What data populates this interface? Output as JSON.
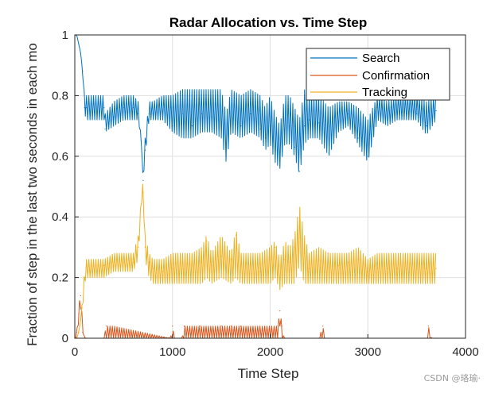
{
  "chart_data": {
    "type": "line",
    "title": "Radar Allocation vs. Time Step",
    "xlabel": "Time Step",
    "ylabel": "Fraction of step in the last two seconds in each mo",
    "xlim": [
      0,
      4000
    ],
    "ylim": [
      0,
      1
    ],
    "xticks": [
      0,
      1000,
      2000,
      3000,
      4000
    ],
    "yticks": [
      0,
      0.2,
      0.4,
      0.6,
      0.8,
      1
    ],
    "xtick_labels": [
      "0",
      "1000",
      "2000",
      "3000",
      "4000"
    ],
    "ytick_labels": [
      "0",
      "0.2",
      "0.4",
      "0.6",
      "0.8",
      "1"
    ],
    "grid": true,
    "legend_position": "top-right",
    "series": [
      {
        "name": "Search",
        "color": "#0072BD",
        "x": [
          0,
          20,
          40,
          60,
          80,
          100,
          120,
          300,
          310,
          400,
          500,
          600,
          650,
          680,
          700,
          720,
          760,
          800,
          900,
          1000,
          1100,
          1200,
          1300,
          1400,
          1500,
          1550,
          1600,
          1700,
          1800,
          1900,
          1950,
          2000,
          2050,
          2100,
          2150,
          2200,
          2250,
          2300,
          2350,
          2400,
          2500,
          2600,
          2700,
          2800,
          2900,
          3000,
          3100,
          3200,
          3300,
          3400,
          3500,
          3600,
          3700
        ],
        "values": [
          1.0,
          1.0,
          0.97,
          0.94,
          0.88,
          0.76,
          0.76,
          0.76,
          0.69,
          0.73,
          0.76,
          0.76,
          0.74,
          0.65,
          0.52,
          0.62,
          0.74,
          0.74,
          0.75,
          0.7,
          0.74,
          0.7,
          0.74,
          0.73,
          0.71,
          0.6,
          0.73,
          0.7,
          0.74,
          0.69,
          0.66,
          0.7,
          0.62,
          0.57,
          0.69,
          0.7,
          0.63,
          0.55,
          0.7,
          0.72,
          0.71,
          0.61,
          0.7,
          0.74,
          0.66,
          0.6,
          0.76,
          0.72,
          0.74,
          0.74,
          0.74,
          0.7,
          0.75
        ],
        "band_low": [
          1.0,
          1.0,
          0.97,
          0.94,
          0.88,
          0.74,
          0.72,
          0.72,
          0.68,
          0.7,
          0.72,
          0.72,
          0.72,
          0.65,
          0.52,
          0.6,
          0.72,
          0.72,
          0.72,
          0.68,
          0.66,
          0.66,
          0.68,
          0.68,
          0.66,
          0.58,
          0.68,
          0.66,
          0.68,
          0.66,
          0.62,
          0.64,
          0.58,
          0.56,
          0.64,
          0.64,
          0.6,
          0.54,
          0.64,
          0.66,
          0.66,
          0.6,
          0.68,
          0.7,
          0.64,
          0.58,
          0.72,
          0.7,
          0.72,
          0.72,
          0.72,
          0.67,
          0.72
        ],
        "band_high": [
          1.0,
          1.0,
          0.97,
          0.94,
          0.88,
          0.8,
          0.8,
          0.8,
          0.74,
          0.78,
          0.8,
          0.8,
          0.78,
          0.65,
          0.52,
          0.66,
          0.78,
          0.78,
          0.8,
          0.8,
          0.82,
          0.82,
          0.82,
          0.82,
          0.82,
          0.74,
          0.82,
          0.8,
          0.82,
          0.8,
          0.76,
          0.8,
          0.74,
          0.7,
          0.8,
          0.8,
          0.76,
          0.72,
          0.82,
          0.8,
          0.8,
          0.76,
          0.78,
          0.78,
          0.76,
          0.72,
          0.8,
          0.78,
          0.8,
          0.8,
          0.8,
          0.78,
          0.8
        ]
      },
      {
        "name": "Confirmation",
        "color": "#D95319",
        "x": [
          0,
          10,
          20,
          40,
          60,
          80,
          100,
          120,
          300,
          320,
          400,
          980,
          1000,
          1020,
          1100,
          1120,
          1200,
          1280,
          1500,
          1600,
          1700,
          2080,
          2100,
          2120,
          2140,
          2500,
          2540,
          2560,
          3600,
          3620,
          3650,
          3700
        ],
        "values": [
          0,
          0,
          0.02,
          0.08,
          0.14,
          0.02,
          0,
          0,
          0,
          0.04,
          0,
          0,
          0.04,
          0,
          0,
          0.04,
          0,
          0.04,
          0.04,
          0.04,
          0.04,
          0.04,
          0.09,
          0.04,
          0,
          0,
          0.04,
          0,
          0,
          0.04,
          0,
          0
        ],
        "band_low": [
          0,
          0,
          0.02,
          0.05,
          0.1,
          0.02,
          0,
          0,
          0,
          0,
          0,
          0,
          0,
          0,
          0,
          0,
          0,
          0,
          0,
          0,
          0,
          0,
          0.04,
          0,
          0,
          0,
          0,
          0,
          0,
          0,
          0,
          0
        ],
        "band_high": [
          0,
          0,
          0.02,
          0.1,
          0.16,
          0.04,
          0,
          0,
          0,
          0.04,
          0.04,
          0,
          0.04,
          0,
          0,
          0.04,
          0.04,
          0.04,
          0.04,
          0.04,
          0.04,
          0.04,
          0.1,
          0.04,
          0,
          0,
          0.04,
          0,
          0,
          0.04,
          0,
          0
        ]
      },
      {
        "name": "Tracking",
        "color": "#EDB120",
        "x": [
          0,
          20,
          40,
          60,
          80,
          100,
          120,
          300,
          400,
          500,
          600,
          650,
          680,
          700,
          720,
          760,
          800,
          900,
          1000,
          1100,
          1200,
          1300,
          1350,
          1400,
          1500,
          1600,
          1650,
          1700,
          1800,
          1900,
          2000,
          2050,
          2100,
          2150,
          2200,
          2250,
          2300,
          2350,
          2400,
          2500,
          2600,
          2700,
          2800,
          2900,
          3000,
          3100,
          3200,
          3300,
          3400,
          3500,
          3600,
          3700
        ],
        "values": [
          0,
          0,
          0.02,
          0.06,
          0.1,
          0.2,
          0.24,
          0.24,
          0.25,
          0.25,
          0.25,
          0.3,
          0.44,
          0.48,
          0.3,
          0.25,
          0.23,
          0.22,
          0.23,
          0.23,
          0.24,
          0.25,
          0.32,
          0.24,
          0.27,
          0.26,
          0.34,
          0.24,
          0.24,
          0.22,
          0.24,
          0.3,
          0.2,
          0.26,
          0.25,
          0.3,
          0.42,
          0.28,
          0.23,
          0.24,
          0.23,
          0.24,
          0.25,
          0.26,
          0.22,
          0.23,
          0.23,
          0.23,
          0.23,
          0.23,
          0.23,
          0.23
        ],
        "band_low": [
          0,
          0,
          0.02,
          0.06,
          0.1,
          0.18,
          0.2,
          0.2,
          0.22,
          0.22,
          0.22,
          0.26,
          0.44,
          0.48,
          0.26,
          0.2,
          0.18,
          0.18,
          0.18,
          0.18,
          0.18,
          0.18,
          0.2,
          0.18,
          0.2,
          0.18,
          0.2,
          0.18,
          0.18,
          0.18,
          0.18,
          0.2,
          0.16,
          0.18,
          0.18,
          0.18,
          0.24,
          0.18,
          0.18,
          0.18,
          0.18,
          0.18,
          0.18,
          0.18,
          0.18,
          0.18,
          0.18,
          0.18,
          0.18,
          0.18,
          0.18,
          0.18
        ],
        "band_high": [
          0,
          0,
          0.02,
          0.06,
          0.14,
          0.22,
          0.26,
          0.26,
          0.28,
          0.28,
          0.28,
          0.34,
          0.46,
          0.52,
          0.34,
          0.28,
          0.26,
          0.26,
          0.28,
          0.28,
          0.28,
          0.3,
          0.34,
          0.28,
          0.34,
          0.28,
          0.36,
          0.28,
          0.28,
          0.28,
          0.3,
          0.32,
          0.26,
          0.32,
          0.3,
          0.34,
          0.44,
          0.34,
          0.28,
          0.3,
          0.28,
          0.28,
          0.28,
          0.3,
          0.26,
          0.28,
          0.28,
          0.28,
          0.28,
          0.28,
          0.28,
          0.28
        ]
      }
    ]
  },
  "watermark": "CSDN @珞瑜·"
}
